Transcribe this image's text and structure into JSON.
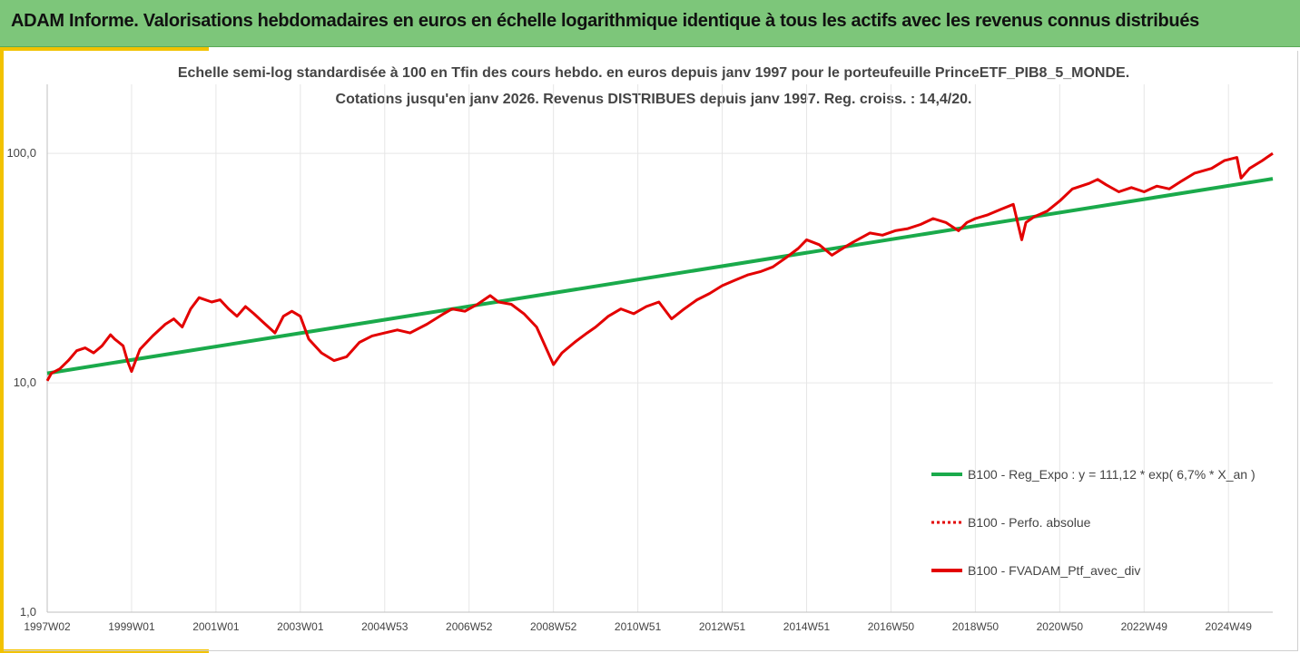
{
  "header": {
    "title": "ADAM Informe. Valorisations hebdomadaires en euros en échelle logarithmique identique à tous les actifs avec les revenus connus distribués"
  },
  "colors": {
    "header_bg": "#7dc67a",
    "accent": "#f2c200",
    "regression": "#1aaa4b",
    "performance": "#e30000"
  },
  "chart_data": {
    "type": "line",
    "title": "Echelle semi-log standardisée  à 100 en Tfin des cours hebdo.  en euros depuis janv 1997 pour le porteufeuille PrinceETF_PIB8_5_MONDE.",
    "subtitle": "Cotations  jusqu'en janv 2026. Revenus DISTRIBUES depuis janv 1997. Reg. croiss. : 14,4/20.",
    "yscale": "log",
    "ylim": [
      1,
      200
    ],
    "yticks": [
      {
        "value": 1,
        "label": "1,0"
      },
      {
        "value": 10,
        "label": "10,0"
      },
      {
        "value": 100,
        "label": "100,0"
      }
    ],
    "xlim": [
      1997.0,
      2026.05
    ],
    "xticks": [
      {
        "value": 1997.0,
        "label": "1997W02"
      },
      {
        "value": 1999.0,
        "label": "1999W01"
      },
      {
        "value": 2001.0,
        "label": "2001W01"
      },
      {
        "value": 2003.0,
        "label": "2003W01"
      },
      {
        "value": 2005.0,
        "label": "2004W53"
      },
      {
        "value": 2007.0,
        "label": "2006W52"
      },
      {
        "value": 2009.0,
        "label": "2008W52"
      },
      {
        "value": 2011.0,
        "label": "2010W51"
      },
      {
        "value": 2013.0,
        "label": "2012W51"
      },
      {
        "value": 2015.0,
        "label": "2014W51"
      },
      {
        "value": 2017.0,
        "label": "2016W50"
      },
      {
        "value": 2019.0,
        "label": "2018W50"
      },
      {
        "value": 2021.0,
        "label": "2020W50"
      },
      {
        "value": 2023.0,
        "label": "2022W49"
      },
      {
        "value": 2025.0,
        "label": "2024W49"
      }
    ],
    "grid": true,
    "legend_position": "bottom-right",
    "series": [
      {
        "name": "B100 - Reg_Expo : y = 111,12 * exp( 6,7% *  X_an )",
        "color": "#1aaa4b",
        "style": "solid",
        "x": [
          1997.0,
          2026.05
        ],
        "y": [
          11.0,
          77.5
        ]
      },
      {
        "name": "B100 - Perfo. absolue",
        "color": "#e30000",
        "style": "dotted",
        "x": [],
        "y": []
      },
      {
        "name": "B100 - FVADAM_Ptf_avec_div",
        "color": "#e30000",
        "style": "solid",
        "x": [
          1997.0,
          1997.1,
          1997.3,
          1997.5,
          1997.7,
          1997.9,
          1998.1,
          1998.3,
          1998.5,
          1998.6,
          1998.8,
          1998.9,
          1999.0,
          1999.2,
          1999.5,
          1999.8,
          2000.0,
          2000.2,
          2000.4,
          2000.6,
          2000.9,
          2001.1,
          2001.3,
          2001.5,
          2001.7,
          2001.9,
          2002.1,
          2002.4,
          2002.6,
          2002.8,
          2003.0,
          2003.2,
          2003.5,
          2003.8,
          2004.1,
          2004.4,
          2004.7,
          2005.0,
          2005.3,
          2005.6,
          2006.0,
          2006.4,
          2006.6,
          2006.9,
          2007.2,
          2007.5,
          2007.7,
          2008.0,
          2008.3,
          2008.6,
          2008.8,
          2009.0,
          2009.2,
          2009.5,
          2009.8,
          2010.0,
          2010.3,
          2010.6,
          2010.9,
          2011.2,
          2011.5,
          2011.8,
          2012.1,
          2012.4,
          2012.7,
          2013.0,
          2013.3,
          2013.6,
          2013.9,
          2014.2,
          2014.5,
          2014.8,
          2015.0,
          2015.3,
          2015.6,
          2015.9,
          2016.1,
          2016.5,
          2016.8,
          2017.1,
          2017.4,
          2017.7,
          2018.0,
          2018.3,
          2018.6,
          2018.8,
          2019.0,
          2019.3,
          2019.6,
          2019.9,
          2020.1,
          2020.2,
          2020.4,
          2020.7,
          2021.0,
          2021.3,
          2021.7,
          2021.9,
          2022.1,
          2022.4,
          2022.7,
          2023.0,
          2023.3,
          2023.6,
          2023.9,
          2024.2,
          2024.6,
          2024.9,
          2025.2,
          2025.3,
          2025.5,
          2025.8,
          2026.05
        ],
        "y": [
          10.2,
          11.0,
          11.5,
          12.5,
          13.8,
          14.2,
          13.5,
          14.5,
          16.2,
          15.5,
          14.5,
          12.5,
          11.2,
          14.0,
          16.0,
          18.0,
          19.0,
          17.5,
          21.0,
          23.5,
          22.5,
          23.0,
          21.0,
          19.5,
          21.5,
          20.0,
          18.5,
          16.5,
          19.5,
          20.5,
          19.5,
          15.5,
          13.5,
          12.5,
          13.0,
          15.0,
          16.0,
          16.5,
          17.0,
          16.5,
          18.0,
          20.0,
          21.0,
          20.5,
          22.0,
          24.0,
          22.5,
          22.0,
          20.0,
          17.5,
          14.5,
          12.0,
          13.5,
          15.0,
          16.5,
          17.5,
          19.5,
          21.0,
          20.0,
          21.5,
          22.5,
          19.0,
          21.0,
          23.0,
          24.5,
          26.5,
          28.0,
          29.5,
          30.5,
          32.0,
          35.0,
          38.5,
          42.0,
          40.0,
          36.0,
          39.0,
          41.0,
          45.0,
          44.0,
          46.0,
          47.0,
          49.0,
          52.0,
          50.0,
          46.0,
          50.0,
          52.0,
          54.0,
          57.0,
          60.0,
          42.0,
          50.0,
          53.0,
          56.0,
          62.0,
          70.0,
          74.0,
          77.0,
          73.0,
          68.0,
          71.0,
          68.0,
          72.0,
          70.0,
          76.0,
          82.0,
          86.0,
          93.0,
          96.0,
          78.0,
          86.0,
          93.0,
          100.0
        ]
      }
    ]
  }
}
